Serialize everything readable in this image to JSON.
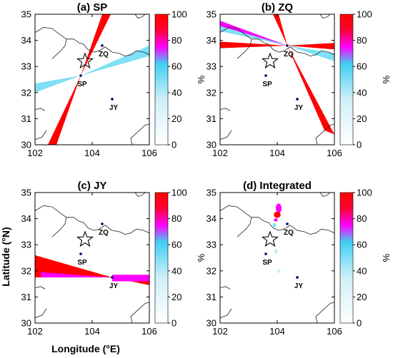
{
  "chart_data": {
    "type": "heatmap",
    "xlabel": "Longitude (°E)",
    "ylabel": "Latitude (°N)",
    "xlim": [
      102,
      106
    ],
    "ylim": [
      30,
      35
    ],
    "xticks": [
      "102",
      "104",
      "106"
    ],
    "yticks": [
      "30",
      "31",
      "32",
      "33",
      "34",
      "35"
    ],
    "colorbar": {
      "label": "%",
      "range": [
        0,
        100
      ],
      "ticks": [
        "0",
        "20",
        "40",
        "60",
        "80",
        "100"
      ],
      "colors": [
        "#ffffff",
        "#cfeff8",
        "#3fd0f4",
        "#ff00ff",
        "#ff0033",
        "#ff0000"
      ]
    },
    "epicenter": {
      "lon": 103.75,
      "lat": 33.2
    },
    "stations": [
      {
        "name": "SP",
        "lon": 103.6,
        "lat": 32.65
      },
      {
        "name": "ZQ",
        "lon": 104.35,
        "lat": 33.8
      },
      {
        "name": "JY",
        "lon": 104.7,
        "lat": 31.75
      }
    ],
    "panels": [
      {
        "id": "a",
        "title": "(a) SP",
        "wedges": [
          {
            "from": [
              103.6,
              32.65
            ],
            "to": [
              104.35,
              35.0
            ],
            "to2": [
              104.65,
              35.0
            ],
            "color": "#ff0000"
          },
          {
            "from": [
              103.6,
              32.65
            ],
            "to": [
              102.45,
              30.0
            ],
            "to2": [
              102.75,
              30.0
            ],
            "color": "#ff0000"
          },
          {
            "from": [
              103.6,
              32.65
            ],
            "to": [
              106.0,
              33.4
            ],
            "to2": [
              106.0,
              33.8
            ],
            "color": "#7fe0f6"
          },
          {
            "from": [
              103.6,
              32.65
            ],
            "to": [
              102.0,
              32.0
            ],
            "to2": [
              102.0,
              32.35
            ],
            "color": "#7fe0f6"
          }
        ]
      },
      {
        "id": "b",
        "title": "(b) ZQ",
        "wedges": [
          {
            "from": [
              104.35,
              33.8
            ],
            "to": [
              102.0,
              34.35
            ],
            "to2": [
              102.0,
              34.75
            ],
            "color": "#7fe0f6"
          },
          {
            "from": [
              104.35,
              33.8
            ],
            "to": [
              106.0,
              33.2
            ],
            "to2": [
              106.0,
              33.5
            ],
            "color": "#7fe0f6"
          },
          {
            "from": [
              104.35,
              33.8
            ],
            "to": [
              102.0,
              33.7
            ],
            "to2": [
              102.0,
              33.95
            ],
            "color": "#ff0000"
          },
          {
            "from": [
              104.35,
              33.8
            ],
            "to": [
              106.0,
              33.65
            ],
            "to2": [
              106.0,
              33.9
            ],
            "color": "#ff0000"
          },
          {
            "from": [
              104.35,
              33.8
            ],
            "to": [
              105.65,
              30.55
            ],
            "to2": [
              106.0,
              30.4
            ],
            "color": "#ff0000"
          },
          {
            "from": [
              104.35,
              33.8
            ],
            "to": [
              103.85,
              35.0
            ],
            "to2": [
              104.05,
              35.0
            ],
            "color": "#ff0000"
          },
          {
            "from": [
              104.35,
              33.8
            ],
            "to": [
              102.0,
              34.55
            ],
            "to2": [
              102.0,
              34.75
            ],
            "color": "#ff00ff"
          }
        ]
      },
      {
        "id": "c",
        "title": "(c) JY",
        "wedges": [
          {
            "from": [
              104.7,
              31.75
            ],
            "to": [
              102.0,
              32.6
            ],
            "to2": [
              102.0,
              31.75
            ],
            "color": "#ff0000"
          },
          {
            "from": [
              104.7,
              31.75
            ],
            "to": [
              106.0,
              31.45
            ],
            "to2": [
              106.0,
              31.75
            ],
            "color": "#ff0000"
          },
          {
            "from": [
              104.7,
              31.75
            ],
            "to": [
              102.2,
              31.75
            ],
            "to2": [
              102.2,
              31.95
            ],
            "color": "#ff00ff"
          }
        ],
        "bars": [
          {
            "lon0": 104.7,
            "lon1": 106.0,
            "lat0": 31.6,
            "lat1": 31.85,
            "color": "#ff00ff"
          }
        ]
      },
      {
        "id": "d",
        "title": "(d) Integrated",
        "blobs": [
          {
            "lon": 104.05,
            "lat": 34.4,
            "rx": 0.1,
            "ry": 0.18,
            "color": "#ff00ff"
          },
          {
            "lon": 104.0,
            "lat": 34.15,
            "rx": 0.12,
            "ry": 0.12,
            "color": "#ff0000"
          },
          {
            "lon": 103.95,
            "lat": 33.95,
            "rx": 0.07,
            "ry": 0.06,
            "color": "#ff00ff"
          },
          {
            "lon": 103.9,
            "lat": 33.75,
            "rx": 0.06,
            "ry": 0.08,
            "color": "#7fe0f6"
          },
          {
            "lon": 103.95,
            "lat": 32.75,
            "rx": 0.06,
            "ry": 0.1,
            "color": "#cfeff8"
          },
          {
            "lon": 104.05,
            "lat": 32.0,
            "rx": 0.06,
            "ry": 0.08,
            "color": "#cfeff8"
          }
        ]
      }
    ],
    "boundaries": [
      [
        [
          102.0,
          34.3
        ],
        [
          102.3,
          34.5
        ],
        [
          102.6,
          34.45
        ],
        [
          102.9,
          34.2
        ],
        [
          103.1,
          34.05
        ],
        [
          103.35,
          34.05
        ],
        [
          103.55,
          33.9
        ],
        [
          103.7,
          33.85
        ],
        [
          103.85,
          33.65
        ],
        [
          104.05,
          33.55
        ],
        [
          104.25,
          33.6
        ],
        [
          104.45,
          33.75
        ],
        [
          104.7,
          33.55
        ],
        [
          104.95,
          33.5
        ],
        [
          105.15,
          33.4
        ],
        [
          105.35,
          33.45
        ],
        [
          105.55,
          33.6
        ],
        [
          105.8,
          33.55
        ],
        [
          106.0,
          33.45
        ]
      ],
      [
        [
          103.1,
          34.05
        ],
        [
          103.05,
          33.8
        ],
        [
          102.9,
          33.6
        ],
        [
          102.75,
          33.45
        ],
        [
          102.6,
          33.3
        ]
      ],
      [
        [
          105.5,
          35.0
        ],
        [
          105.6,
          34.85
        ],
        [
          105.75,
          34.9
        ],
        [
          105.85,
          35.0
        ]
      ],
      [
        [
          105.4,
          30.0
        ],
        [
          105.35,
          30.25
        ],
        [
          105.5,
          30.4
        ],
        [
          105.65,
          30.55
        ],
        [
          105.85,
          30.75
        ],
        [
          106.0,
          30.8
        ]
      ],
      [
        [
          102.0,
          30.2
        ],
        [
          102.25,
          30.3
        ],
        [
          102.4,
          30.55
        ]
      ],
      [
        [
          102.0,
          31.35
        ],
        [
          102.2,
          31.4
        ],
        [
          102.35,
          31.3
        ]
      ]
    ]
  }
}
